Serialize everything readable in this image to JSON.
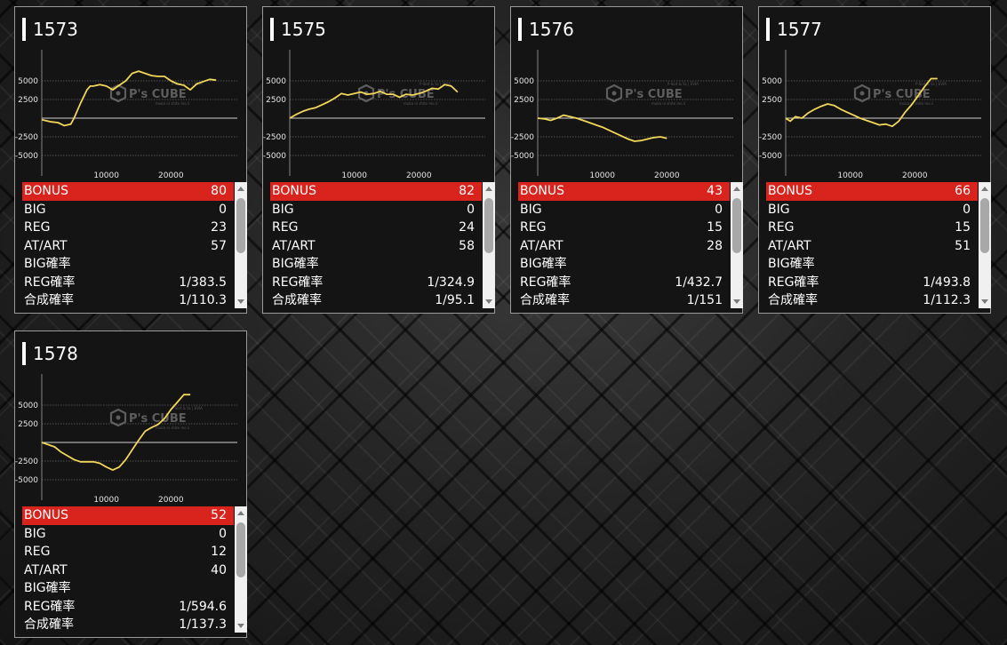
{
  "watermark": {
    "brand": "P's CUBE",
    "tagline": "P-Slot & Sc | EVIA",
    "sub": "muka ni shite mo ii"
  },
  "colors": {
    "line": "#f2d65a",
    "highlight": "#d9241e",
    "axis": "#cfcfcf"
  },
  "chart_axes": {
    "y_ticks": [
      5000,
      2500,
      -2500,
      -5000
    ],
    "x_ticks": [
      10000,
      20000
    ],
    "y_range": [
      -7500,
      7500
    ]
  },
  "machines": [
    {
      "number": "1573",
      "stats": [
        {
          "label": "BONUS",
          "value": "80"
        },
        {
          "label": "BIG",
          "value": "0"
        },
        {
          "label": "REG",
          "value": "23"
        },
        {
          "label": "AT/ART",
          "value": "57"
        },
        {
          "label": "BIG確率",
          "value": ""
        },
        {
          "label": "REG確率",
          "value": "1/383.5"
        },
        {
          "label": "合成確率",
          "value": "1/110.3"
        }
      ],
      "chart_data": {
        "type": "line",
        "x": [
          0,
          1500,
          2500,
          3500,
          4500,
          5000,
          6000,
          7000,
          7500,
          8000,
          9000,
          10000,
          11000,
          12000,
          13000,
          14000,
          15000,
          16000,
          17000,
          18000,
          19000,
          20000,
          21000,
          22000,
          23000,
          24000,
          25000,
          26000,
          27000
        ],
        "y": [
          -200,
          -500,
          -600,
          -1000,
          -800,
          0,
          2000,
          3800,
          4300,
          4300,
          4500,
          4300,
          3800,
          4400,
          5000,
          6000,
          6300,
          6000,
          5700,
          5600,
          5600,
          5000,
          4600,
          4400,
          3800,
          4600,
          4900,
          5200,
          5100
        ]
      }
    },
    {
      "number": "1575",
      "stats": [
        {
          "label": "BONUS",
          "value": "82"
        },
        {
          "label": "BIG",
          "value": "0"
        },
        {
          "label": "REG",
          "value": "24"
        },
        {
          "label": "AT/ART",
          "value": "58"
        },
        {
          "label": "BIG確率",
          "value": ""
        },
        {
          "label": "REG確率",
          "value": "1/324.9"
        },
        {
          "label": "合成確率",
          "value": "1/95.1"
        }
      ],
      "chart_data": {
        "type": "line",
        "x": [
          0,
          1000,
          2000,
          3000,
          4000,
          5000,
          6000,
          7000,
          8000,
          9000,
          10000,
          11000,
          12000,
          13000,
          14000,
          15000,
          16000,
          17000,
          18000,
          19000,
          20000,
          21000,
          22000,
          23000,
          24000,
          25000,
          26000
        ],
        "y": [
          0,
          500,
          900,
          1200,
          1400,
          1800,
          2200,
          2700,
          3300,
          3100,
          3300,
          3500,
          3200,
          3300,
          3600,
          3200,
          3200,
          2800,
          3200,
          3100,
          3300,
          3600,
          4000,
          3900,
          4500,
          4300,
          3500
        ]
      }
    },
    {
      "number": "1576",
      "stats": [
        {
          "label": "BONUS",
          "value": "43"
        },
        {
          "label": "BIG",
          "value": "0"
        },
        {
          "label": "REG",
          "value": "15"
        },
        {
          "label": "AT/ART",
          "value": "28"
        },
        {
          "label": "BIG確率",
          "value": ""
        },
        {
          "label": "REG確率",
          "value": "1/432.7"
        },
        {
          "label": "合成確率",
          "value": "1/151"
        }
      ],
      "chart_data": {
        "type": "line",
        "x": [
          0,
          1000,
          2000,
          3000,
          4000,
          5000,
          6000,
          7000,
          8000,
          9000,
          10000,
          11000,
          12000,
          13000,
          14000,
          15000,
          16000,
          17000,
          18000,
          19000,
          20000
        ],
        "y": [
          0,
          -100,
          -300,
          0,
          400,
          200,
          0,
          -300,
          -600,
          -900,
          -1200,
          -1600,
          -2000,
          -2400,
          -2800,
          -3100,
          -3000,
          -2800,
          -2600,
          -2500,
          -2700
        ]
      }
    },
    {
      "number": "1577",
      "stats": [
        {
          "label": "BONUS",
          "value": "66"
        },
        {
          "label": "BIG",
          "value": "0"
        },
        {
          "label": "REG",
          "value": "15"
        },
        {
          "label": "AT/ART",
          "value": "51"
        },
        {
          "label": "BIG確率",
          "value": ""
        },
        {
          "label": "REG確率",
          "value": "1/493.8"
        },
        {
          "label": "合成確率",
          "value": "1/112.3"
        }
      ],
      "chart_data": {
        "type": "line",
        "x": [
          0,
          700,
          1500,
          2500,
          3500,
          4500,
          5500,
          6500,
          7500,
          8500,
          9500,
          10500,
          11500,
          12500,
          13500,
          14500,
          15500,
          16500,
          17500,
          18500,
          19500,
          20500,
          21500,
          22500,
          23500
        ],
        "y": [
          0,
          -400,
          200,
          0,
          700,
          1200,
          1600,
          1900,
          1700,
          1200,
          800,
          400,
          0,
          -300,
          -600,
          -900,
          -800,
          -1100,
          -400,
          800,
          1800,
          3000,
          4200,
          5300,
          5300
        ]
      }
    },
    {
      "number": "1578",
      "stats": [
        {
          "label": "BONUS",
          "value": "52"
        },
        {
          "label": "BIG",
          "value": "0"
        },
        {
          "label": "REG",
          "value": "12"
        },
        {
          "label": "AT/ART",
          "value": "40"
        },
        {
          "label": "BIG確率",
          "value": ""
        },
        {
          "label": "REG確率",
          "value": "1/594.6"
        },
        {
          "label": "合成確率",
          "value": "1/137.3"
        }
      ],
      "chart_data": {
        "type": "line",
        "x": [
          0,
          1000,
          2000,
          3000,
          4000,
          5000,
          6000,
          7000,
          8000,
          9000,
          10000,
          11000,
          12000,
          13000,
          14000,
          15000,
          16000,
          17000,
          18000,
          19000,
          20000,
          21000,
          22000,
          23000
        ],
        "y": [
          0,
          -300,
          -600,
          -1300,
          -1800,
          -2300,
          -2600,
          -2600,
          -2600,
          -2800,
          -3300,
          -3700,
          -3300,
          -2300,
          -1000,
          300,
          1500,
          2000,
          2400,
          3200,
          4400,
          5400,
          6400,
          6400
        ]
      }
    }
  ]
}
